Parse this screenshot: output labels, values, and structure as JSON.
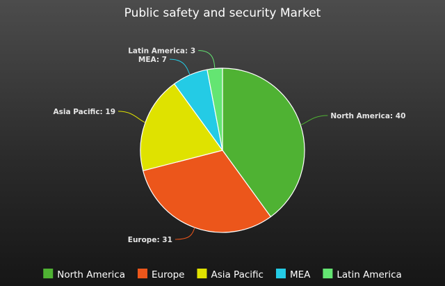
{
  "chart_data": {
    "type": "pie",
    "title": "Public safety and security Market",
    "categories": [
      "North America",
      "Europe",
      "Asia Pacific",
      "MEA",
      "Latin America"
    ],
    "values": [
      40,
      31,
      19,
      7,
      3
    ],
    "data_labels": [
      "North America: 40",
      "Europe: 31",
      "Asia Pacific: 19",
      "MEA: 7",
      "Latin America: 3"
    ],
    "colors": [
      "#4fb233",
      "#ec561b",
      "#dfe200",
      "#24cbe5",
      "#64e572"
    ],
    "legend_position": "bottom",
    "start_angle": "top",
    "direction": "clockwise"
  }
}
